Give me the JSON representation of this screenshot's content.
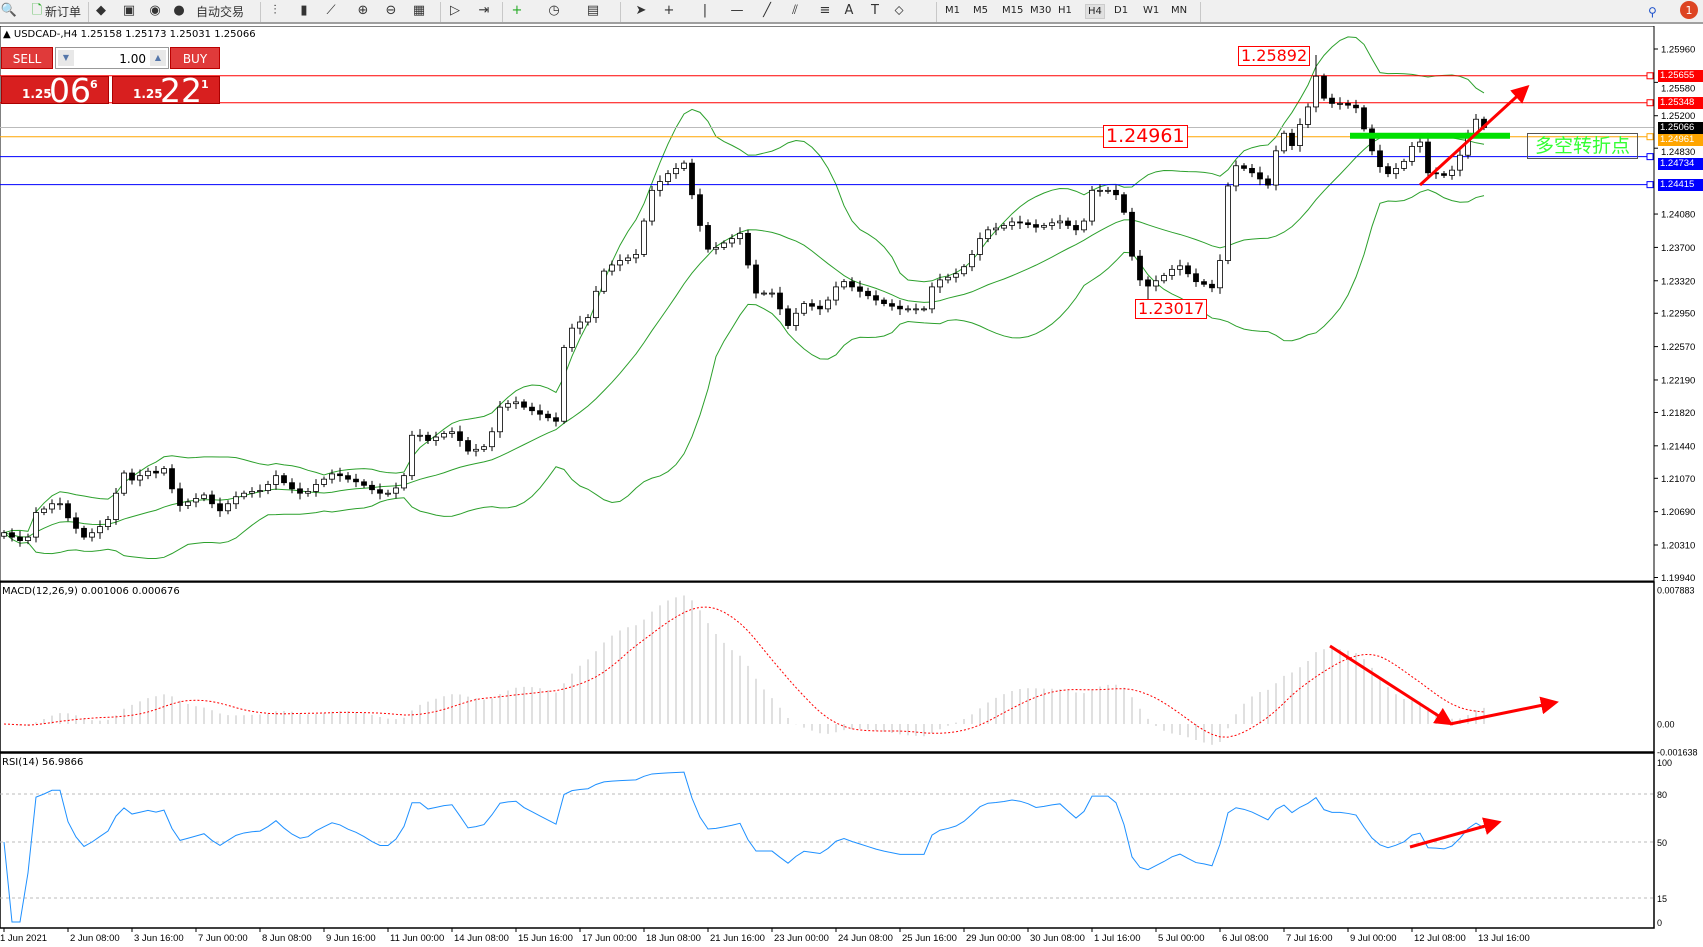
{
  "toolbar": {
    "new_order_label": "新订单",
    "auto_trading_label": "自动交易",
    "icons": [
      "zoom-icon",
      "new-order-icon",
      "history-icon",
      "terminal-icon",
      "signal-icon",
      "auto-trading-icon",
      "bar-chart-icon",
      "candlestick-icon",
      "line-chart-icon",
      "zoom-in-icon",
      "zoom-out-icon",
      "tile-windows-icon",
      "auto-scroll-icon",
      "chart-shift-icon",
      "indicators-icon",
      "periods-icon",
      "templates-icon",
      "cursor-icon",
      "crosshair-icon",
      "vertical-line-icon",
      "horizontal-line-icon",
      "trendline-icon",
      "equidistant-channel-icon",
      "fibonacci-icon",
      "text-icon",
      "text-label-icon",
      "arrows-icon"
    ],
    "text_tool": "A",
    "label_tool": "T",
    "timeframes": [
      "M1",
      "M5",
      "M15",
      "M30",
      "H1",
      "H4",
      "D1",
      "W1",
      "MN"
    ],
    "active_timeframe": "H4",
    "notification_count": "1"
  },
  "symbol_info": "USDCAD-,H4  1.25158 1.25173 1.25031 1.25066",
  "trade_panel": {
    "sell_label": "SELL",
    "buy_label": "BUY",
    "lot": "1.00",
    "sell_price": {
      "prefix": "1.25",
      "big": "06",
      "sup": "6"
    },
    "buy_price": {
      "prefix": "1.25",
      "big": "22",
      "sup": "1"
    }
  },
  "colors": {
    "bullish": "#ffffff",
    "bearish": "#000000",
    "bands": "#2ca02c",
    "macd_hist": "#c0c0c0",
    "macd_signal": "#ff0000",
    "rsi": "#1e90ff",
    "resistance": "#ff0000",
    "support": "#0000ff",
    "pivot": "#ffa500",
    "annotation": "#ff0000",
    "pivot_zone": "#00e000"
  },
  "chart_data": [
    {
      "type": "candlestick",
      "symbol": "USDCAD",
      "timeframe": "H4",
      "closes": [
        1.2045,
        1.204,
        1.2036,
        1.204,
        1.2068,
        1.2072,
        1.2078,
        1.2078,
        1.2062,
        1.205,
        1.204,
        1.2045,
        1.2052,
        1.206,
        1.209,
        1.2113,
        1.2105,
        1.211,
        1.2115,
        1.2113,
        1.2118,
        1.2095,
        1.2076,
        1.208,
        1.2084,
        1.2088,
        1.2078,
        1.207,
        1.2078,
        1.2086,
        1.209,
        1.2092,
        1.2093,
        1.21,
        1.211,
        1.2102,
        1.2095,
        1.209,
        1.2092,
        1.21,
        1.2106,
        1.2112,
        1.211,
        1.2106,
        1.2103,
        1.2099,
        1.2094,
        1.209,
        1.209,
        1.2096,
        1.211,
        1.2156,
        1.2156,
        1.215,
        1.2154,
        1.2158,
        1.216,
        1.215,
        1.2138,
        1.214,
        1.2143,
        1.216,
        1.2188,
        1.2192,
        1.2194,
        1.2188,
        1.2184,
        1.218,
        1.2176,
        1.2172,
        1.2256,
        1.2278,
        1.2285,
        1.229,
        1.232,
        1.2343,
        1.235,
        1.2355,
        1.2358,
        1.2362,
        1.24,
        1.2435,
        1.2445,
        1.2454,
        1.246,
        1.2466,
        1.243,
        1.2395,
        1.2368,
        1.237,
        1.2375,
        1.238,
        1.2386,
        1.235,
        1.2318,
        1.2318,
        1.2318,
        1.23,
        1.2281,
        1.2295,
        1.2306,
        1.2303,
        1.23,
        1.231,
        1.2325,
        1.2331,
        1.2325,
        1.232,
        1.2315,
        1.231,
        1.2306,
        1.2303,
        1.23,
        1.23,
        1.23,
        1.23,
        1.2325,
        1.2333,
        1.2336,
        1.234,
        1.2348,
        1.2362,
        1.238,
        1.239,
        1.2392,
        1.2395,
        1.2399,
        1.2398,
        1.2396,
        1.2393,
        1.2395,
        1.2398,
        1.24,
        1.2395,
        1.239,
        1.24,
        1.2435,
        1.2435,
        1.2435,
        1.243,
        1.241,
        1.236,
        1.2333,
        1.2326,
        1.2332,
        1.2338,
        1.2345,
        1.2349,
        1.234,
        1.2331,
        1.2328,
        1.2324,
        1.2355,
        1.244,
        1.2463,
        1.246,
        1.2455,
        1.2448,
        1.2441,
        1.248,
        1.25,
        1.2486,
        1.251,
        1.253,
        1.2565,
        1.254,
        1.2534,
        1.2534,
        1.2532,
        1.2529,
        1.2505,
        1.248,
        1.2462,
        1.2454,
        1.246,
        1.2468,
        1.2485,
        1.249,
        1.2455,
        1.2454,
        1.2452,
        1.2458,
        1.2475,
        1.25,
        1.2516,
        1.25066
      ],
      "indicators": [
        "Bollinger Bands(20,2)"
      ],
      "y_range": [
        1.1994,
        1.261
      ],
      "price_ticks": [
        "1.25960",
        "1.25580",
        "1.25200",
        "1.24830",
        "1.24080",
        "1.23700",
        "1.23320",
        "1.22950",
        "1.22570",
        "1.22190",
        "1.21820",
        "1.21440",
        "1.21070",
        "1.20690",
        "1.20310",
        "1.19940"
      ],
      "time_labels": [
        "1 Jun 2021",
        "2 Jun 08:00",
        "3 Jun 16:00",
        "7 Jun 00:00",
        "8 Jun 08:00",
        "9 Jun 16:00",
        "11 Jun 00:00",
        "14 Jun 08:00",
        "15 Jun 16:00",
        "17 Jun 00:00",
        "18 Jun 08:00",
        "21 Jun 16:00",
        "23 Jun 00:00",
        "24 Jun 08:00",
        "25 Jun 16:00",
        "29 Jun 00:00",
        "30 Jun 08:00",
        "1 Jul 16:00",
        "5 Jul 00:00",
        "6 Jul 08:00",
        "7 Jul 16:00",
        "9 Jul 00:00",
        "12 Jul 08:00",
        "13 Jul 16:00"
      ],
      "levels": [
        {
          "price": "1.25655",
          "kind": "resistance"
        },
        {
          "price": "1.25348",
          "kind": "resistance"
        },
        {
          "price": "1.25066",
          "kind": "current"
        },
        {
          "price": "1.24961",
          "kind": "pivot"
        },
        {
          "price": "1.24734",
          "kind": "support"
        },
        {
          "price": "1.24415",
          "kind": "support"
        }
      ],
      "annotations": {
        "high_label": {
          "text": "1.25892",
          "bar": 164
        },
        "pivot_label": {
          "text": "1.24961"
        },
        "low_label": {
          "text": "1.23017",
          "bar": 143
        },
        "pivot_text": "多空转折点"
      }
    },
    {
      "type": "histogram+line",
      "title": "MACD(12,26,9) 0.001006 0.000676",
      "y_ticks": [
        "0.007883",
        "0.00",
        "-0.001638"
      ],
      "y_range": [
        -0.001638,
        0.007883
      ]
    },
    {
      "type": "line",
      "title": "RSI(14) 56.9866",
      "y_ticks": [
        "100",
        "80",
        "50",
        "15",
        "0"
      ],
      "levels": [
        80,
        50,
        15
      ],
      "y_range": [
        0,
        100
      ]
    }
  ]
}
